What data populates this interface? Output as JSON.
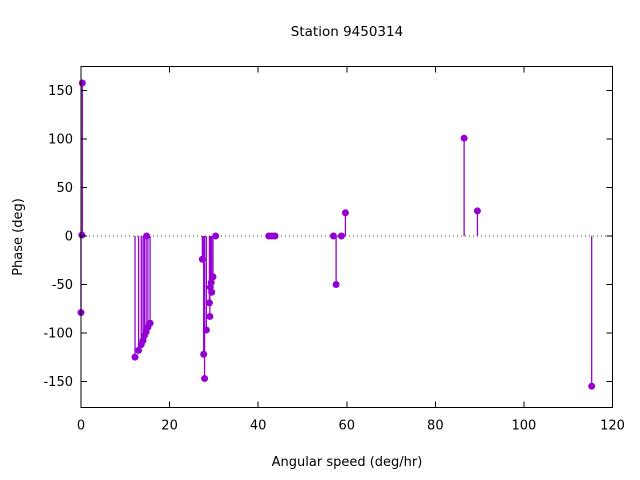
{
  "window": {
    "title": "Station 9450314"
  },
  "chart_data": {
    "type": "scatter",
    "style": "points-with-impulses",
    "title": "Station 9450314",
    "xlabel": "Angular speed (deg/hr)",
    "ylabel": "Phase (deg)",
    "xlim": [
      0,
      120
    ],
    "ylim": [
      -177,
      175
    ],
    "xticks": [
      0,
      20,
      40,
      60,
      80,
      100,
      120
    ],
    "yticks": [
      -150,
      -100,
      -50,
      0,
      50,
      100,
      150
    ],
    "grid": false,
    "zero_line": true,
    "legend": "none",
    "series_color": "#9400d3",
    "zero_line_color": "#444444",
    "border_color": "#000000",
    "background_color": "#ffffff",
    "points": [
      [
        0.0,
        -79
      ],
      [
        0.2,
        1
      ],
      [
        0.3,
        158
      ],
      [
        12.2,
        -125
      ],
      [
        13.0,
        -118
      ],
      [
        13.6,
        -112
      ],
      [
        14.0,
        -108
      ],
      [
        14.3,
        -103
      ],
      [
        14.7,
        -99
      ],
      [
        15.1,
        -94
      ],
      [
        15.6,
        -90
      ],
      [
        14.8,
        0
      ],
      [
        27.4,
        -24
      ],
      [
        27.7,
        -122
      ],
      [
        27.9,
        -147
      ],
      [
        28.3,
        -97
      ],
      [
        29.0,
        -69
      ],
      [
        29.1,
        -83
      ],
      [
        29.2,
        -53
      ],
      [
        29.4,
        -48
      ],
      [
        29.5,
        -58
      ],
      [
        29.8,
        -42
      ],
      [
        30.4,
        0
      ],
      [
        42.4,
        0
      ],
      [
        43.1,
        0
      ],
      [
        43.8,
        0
      ],
      [
        57.0,
        0
      ],
      [
        57.6,
        -50
      ],
      [
        58.8,
        0
      ],
      [
        59.7,
        24
      ],
      [
        86.5,
        101
      ],
      [
        89.5,
        26
      ],
      [
        115.3,
        -155
      ]
    ]
  }
}
